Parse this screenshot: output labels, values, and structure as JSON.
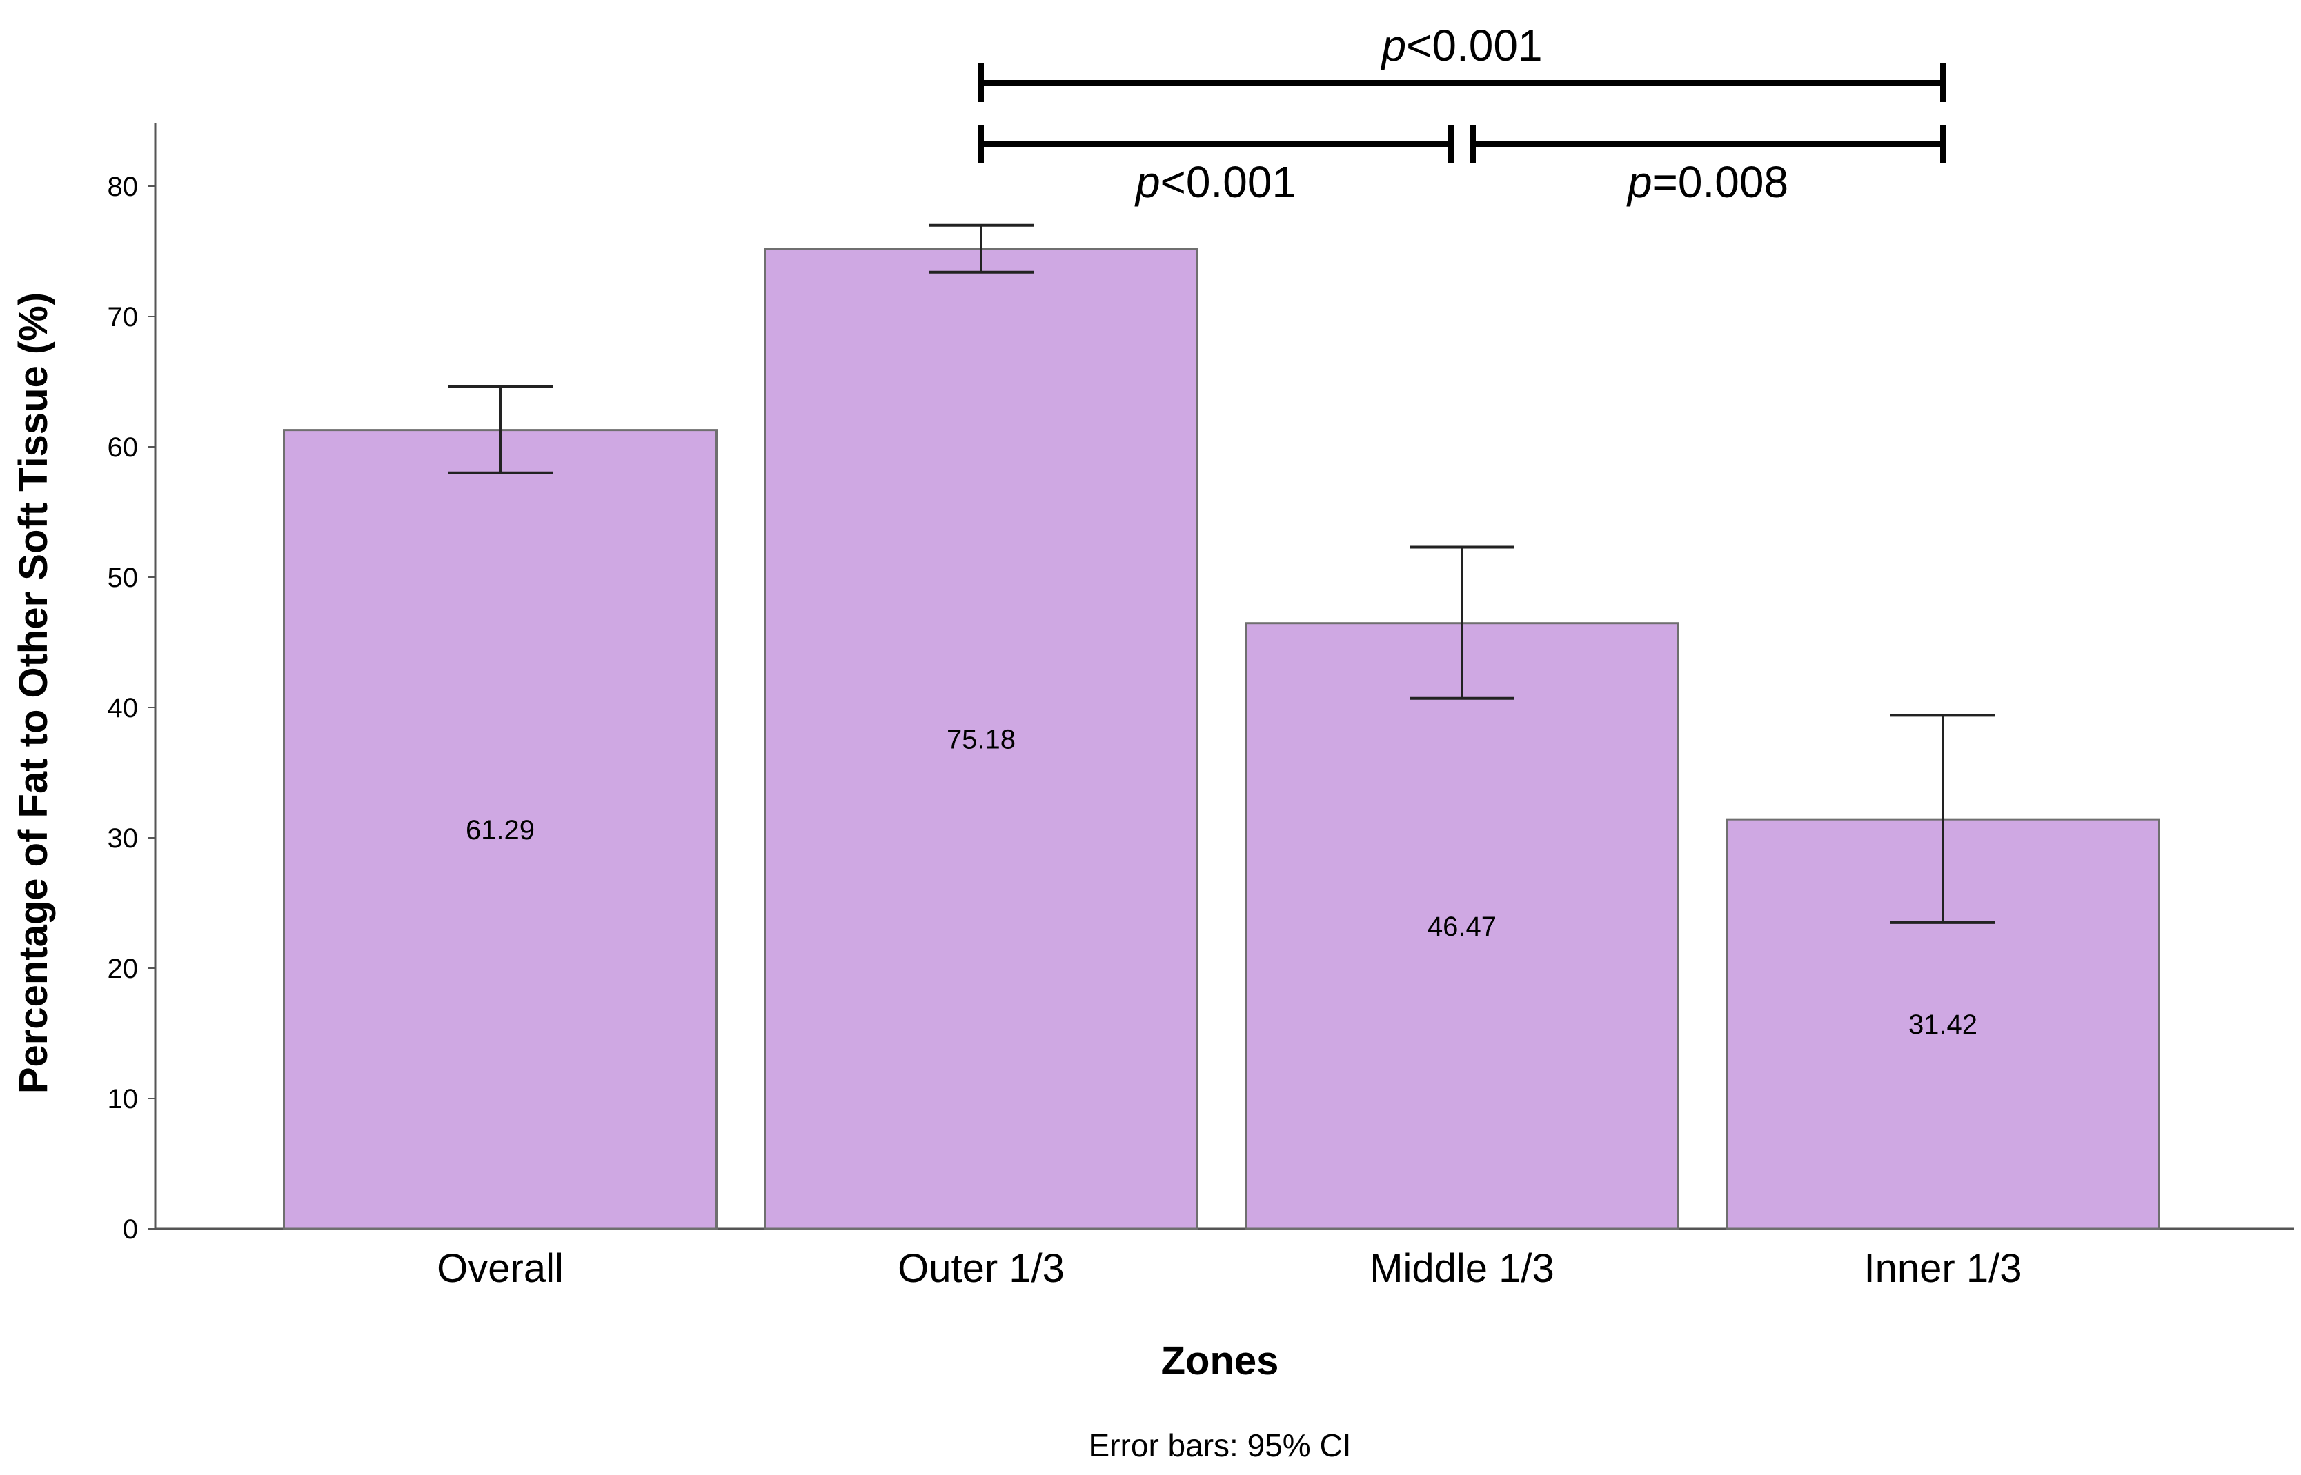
{
  "chart_data": {
    "type": "bar",
    "title": "",
    "xlabel": "Zones",
    "ylabel": "Percentage of Fat to Other Soft Tissue (%)",
    "ylim": [
      0,
      85
    ],
    "yticks": [
      0,
      10,
      20,
      30,
      40,
      50,
      60,
      70,
      80
    ],
    "grid": false,
    "categories": [
      "Overall",
      "Outer 1/3",
      "Middle 1/3",
      "Inner 1/3"
    ],
    "values": [
      61.29,
      75.18,
      46.47,
      31.42
    ],
    "value_labels": [
      "61.29",
      "75.18",
      "46.47",
      "31.42"
    ],
    "error_bars": {
      "type": "95% CI",
      "lower": [
        58.0,
        73.4,
        40.7,
        23.5
      ],
      "upper": [
        64.6,
        77.0,
        52.3,
        39.4
      ]
    },
    "bar_color": "#cfa8e3",
    "bar_edge_color": "#6f6f6f",
    "footnote": "Error bars: 95% CI",
    "significance": [
      {
        "from": "Outer 1/3",
        "to": "Inner 1/3",
        "p_symbol": "p",
        "p_rest": "<0.001",
        "level": 2
      },
      {
        "from": "Outer 1/3",
        "to": "Middle 1/3",
        "p_symbol": "p",
        "p_rest": "<0.001",
        "level": 1
      },
      {
        "from": "Middle 1/3",
        "to": "Inner 1/3",
        "p_symbol": "p",
        "p_rest": "=0.008",
        "level": 1
      }
    ]
  }
}
